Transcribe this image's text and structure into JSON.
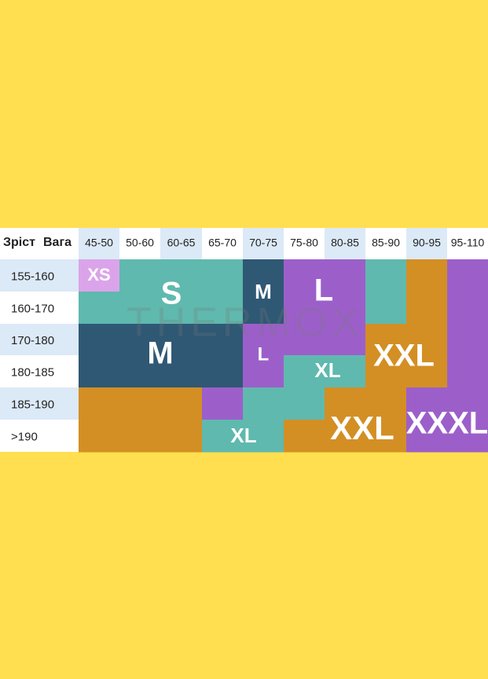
{
  "header": {
    "height_label": "Зріст",
    "weight_label": "Вага"
  },
  "weights": [
    "45-50",
    "50-60",
    "60-65",
    "65-70",
    "70-75",
    "75-80",
    "80-85",
    "85-90",
    "90-95",
    "95-110"
  ],
  "heights": [
    "155-160",
    "160-170",
    "170-180",
    "180-185",
    "185-190",
    ">190"
  ],
  "sizes": [
    "XS",
    "S",
    "M",
    "L",
    "M",
    "L",
    "XL",
    "XXL",
    "XL",
    "XXL",
    "XXXL"
  ],
  "watermark": "THERMOX"
}
